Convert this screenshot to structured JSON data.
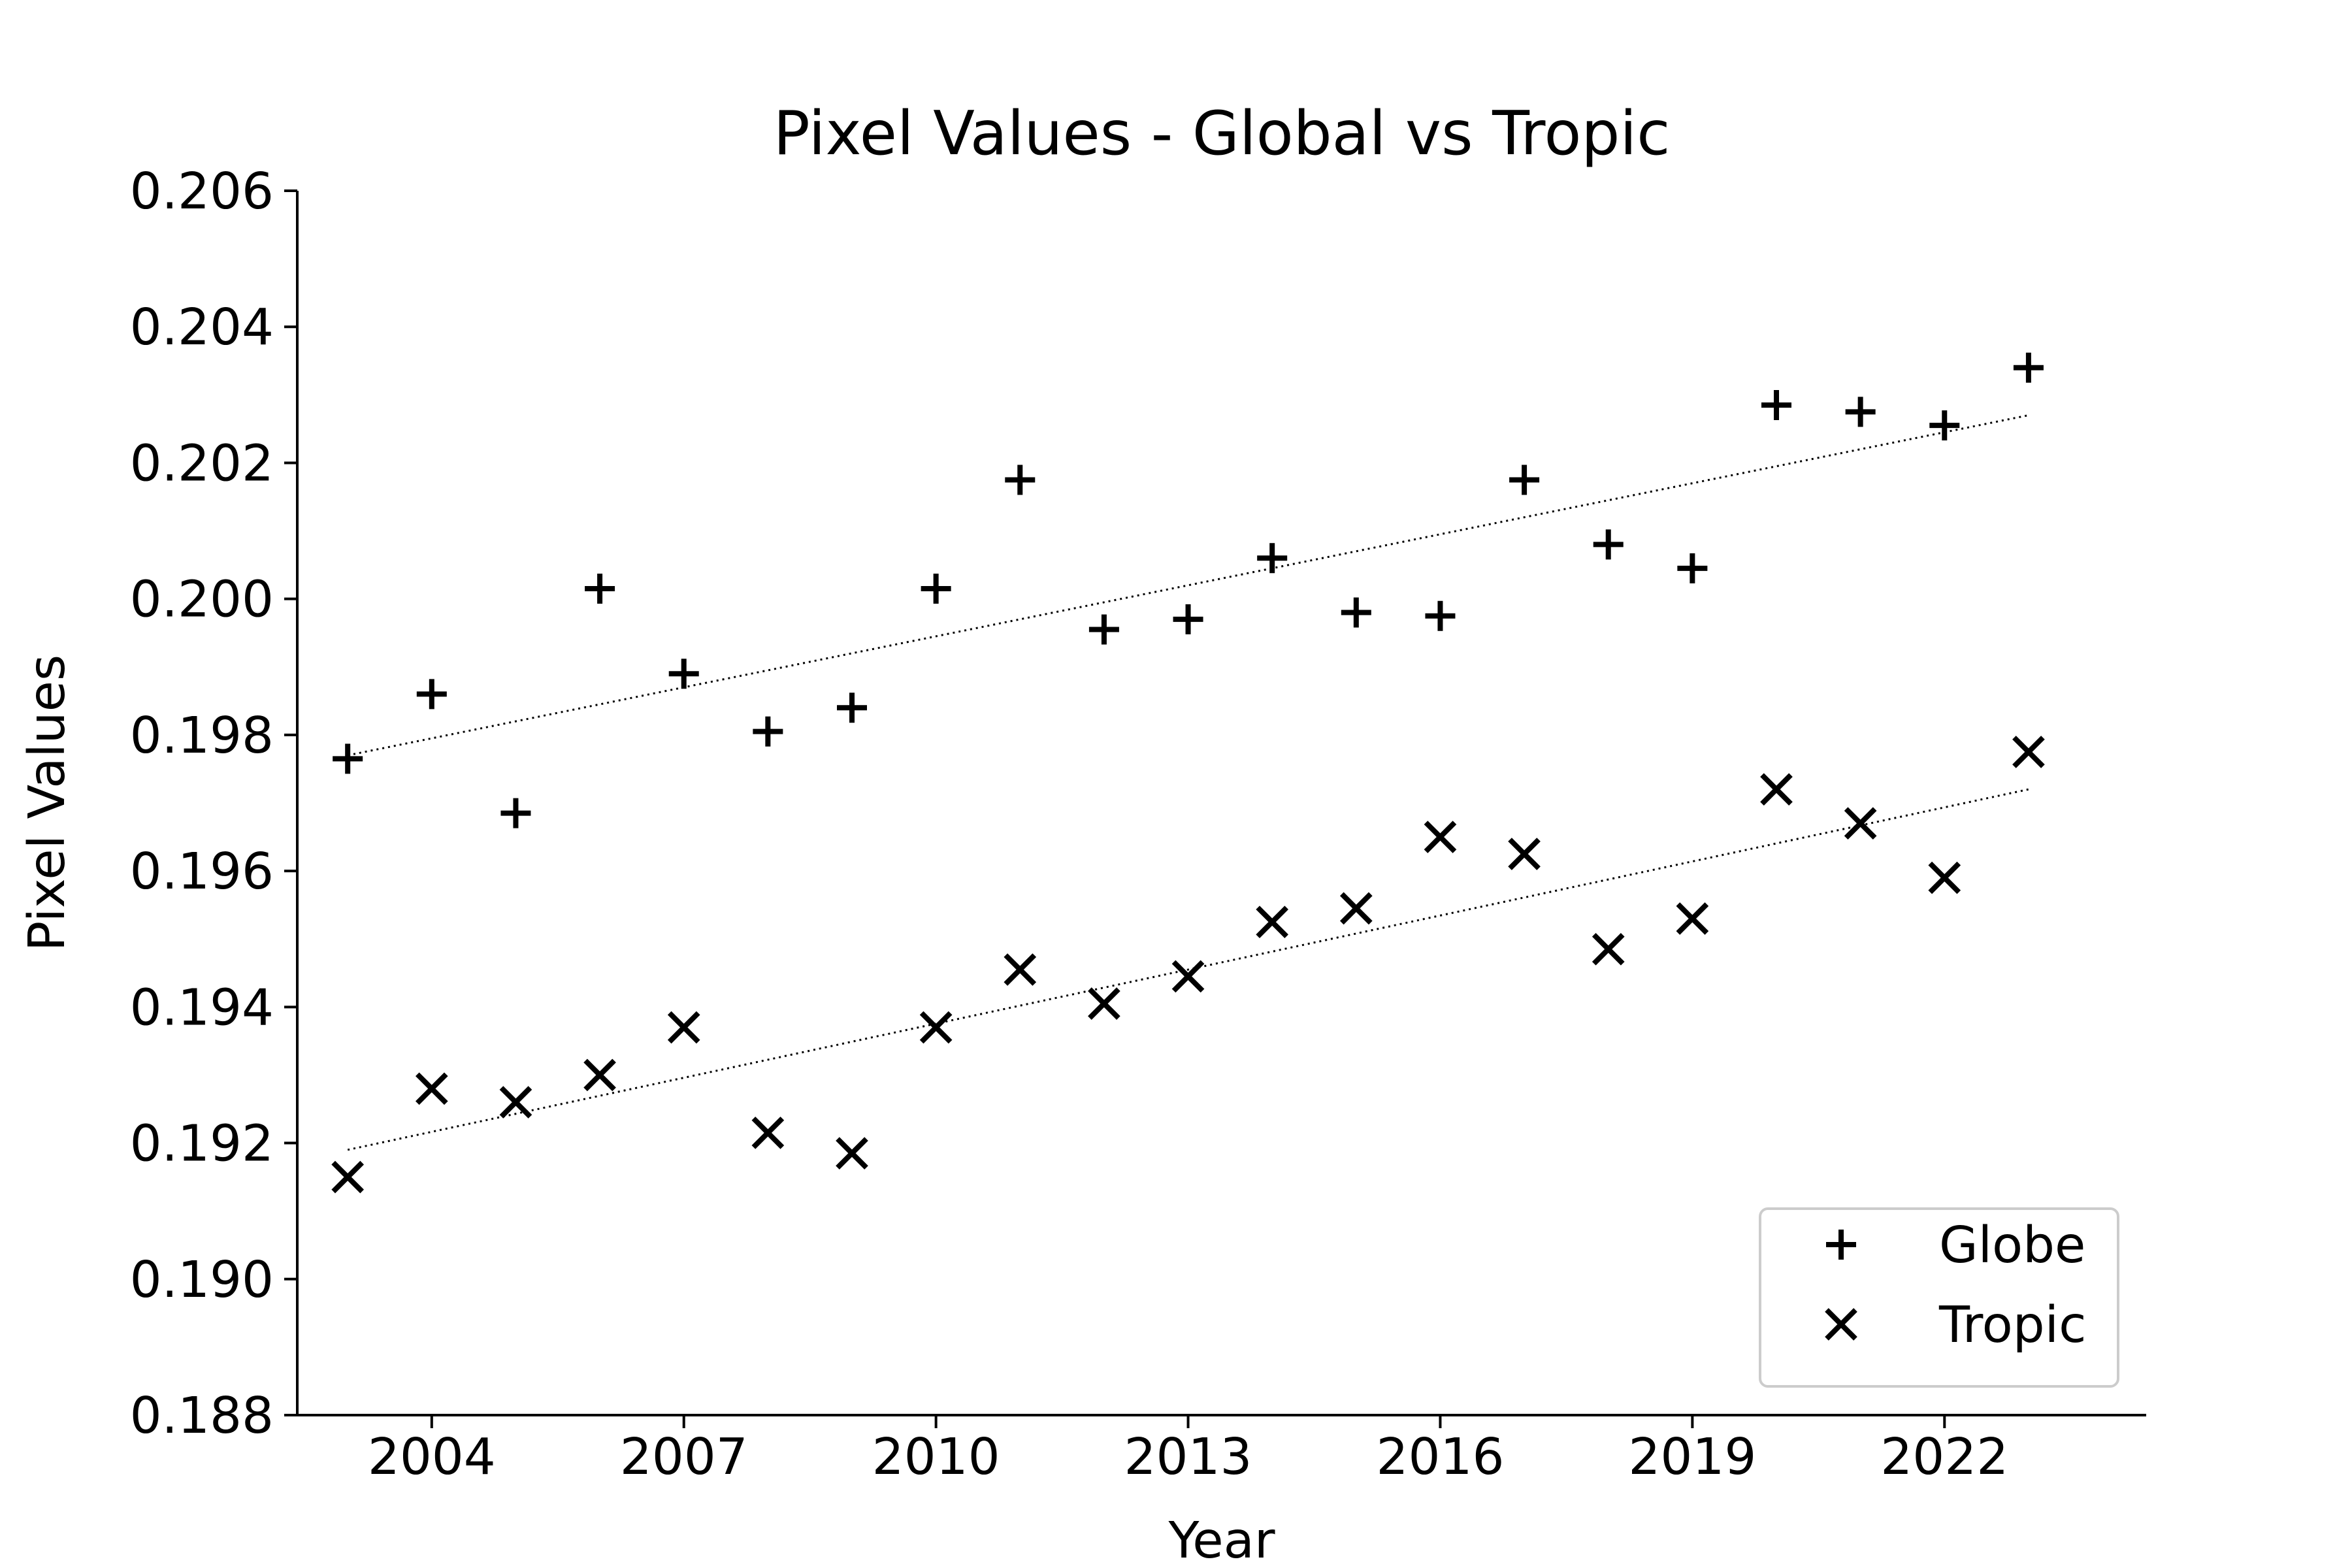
{
  "chart_data": {
    "type": "scatter",
    "title": "Pixel Values - Global vs Tropic",
    "xlabel": "Year",
    "ylabel": "Pixel Values",
    "xlim": [
      2002.4,
      2024.4
    ],
    "ylim": [
      0.188,
      0.206
    ],
    "xticks": [
      2004,
      2007,
      2010,
      2013,
      2016,
      2019,
      2022
    ],
    "yticks": [
      0.188,
      0.19,
      0.192,
      0.194,
      0.196,
      0.198,
      0.2,
      0.202,
      0.204,
      0.206
    ],
    "grid": false,
    "legend": {
      "position": "lower right"
    },
    "x": [
      2003,
      2004,
      2005,
      2006,
      2007,
      2008,
      2009,
      2010,
      2011,
      2012,
      2013,
      2014,
      2015,
      2016,
      2017,
      2018,
      2019,
      2020,
      2021,
      2022,
      2023
    ],
    "series": [
      {
        "name": "Globe",
        "marker": "plus",
        "color": "#000000",
        "values": [
          0.19765,
          0.1986,
          0.19685,
          0.20015,
          0.1989,
          0.19805,
          0.1984,
          0.20015,
          0.20175,
          0.19955,
          0.1997,
          0.2006,
          0.1998,
          0.19975,
          0.20175,
          0.2008,
          0.20045,
          0.20285,
          0.20275,
          0.20255,
          0.2034
        ],
        "trend": [
          0.1977,
          0.2027
        ]
      },
      {
        "name": "Tropic",
        "marker": "x",
        "color": "#000000",
        "values": [
          0.1915,
          0.1928,
          0.1926,
          0.193,
          0.1937,
          0.19215,
          0.19185,
          0.1937,
          0.19455,
          0.19405,
          0.19445,
          0.19525,
          0.19545,
          0.1965,
          0.19625,
          0.19485,
          0.1953,
          0.1972,
          0.1967,
          0.1959,
          0.19775
        ],
        "trend": [
          0.1919,
          0.1972
        ]
      }
    ]
  }
}
